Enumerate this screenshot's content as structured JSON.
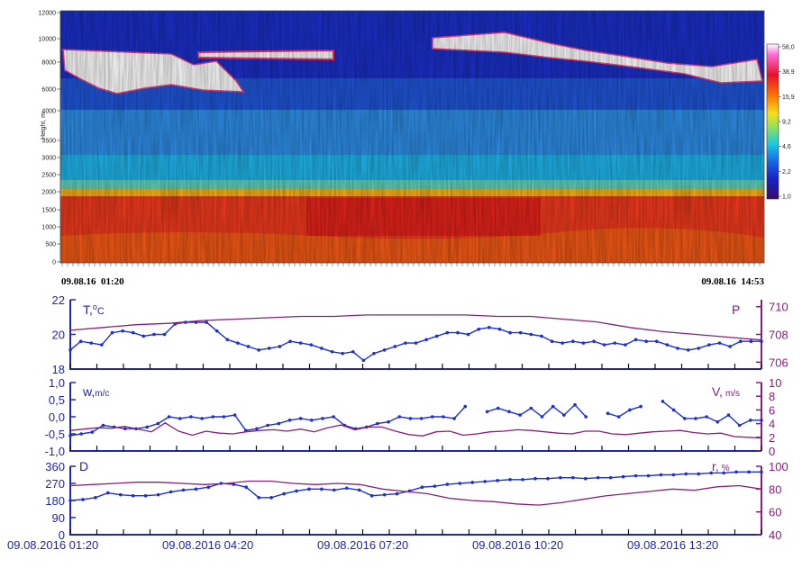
{
  "colors": {
    "blue": "#1f26b3",
    "purple": "#8c1c7a",
    "series_blue": "#1c2fd6",
    "series_purple": "#8a1f7a"
  },
  "chart_data": [
    {
      "type": "heatmap",
      "ylabel": "Height, m",
      "y_ticks": [
        "0",
        "500",
        "1000",
        "1500",
        "2000",
        "2500",
        "3000",
        "3500",
        "4000",
        "6000",
        "8000",
        "10000",
        "12000"
      ],
      "start_label": "09.08.16  01:20",
      "end_label": "09.08.16  14:53",
      "colorbar_ticks": [
        "58,0",
        "38,9",
        "15,9",
        "9,2",
        "4,6",
        "2,2",
        "1,0"
      ],
      "colorbar_colors": [
        "#ffffff",
        "#ff6ad8",
        "#e8102a",
        "#ff7a00",
        "#f4e11a",
        "#7fe06a",
        "#16c8e8",
        "#1a6de8",
        "#1622c8",
        "#3a0a6a"
      ]
    },
    {
      "type": "line",
      "left_label": "T,°C",
      "left_label_base": "T,",
      "left_label_sup": "o",
      "left_label_unit": "C",
      "right_label": "P",
      "left_ticks": [
        "18",
        "20",
        "22"
      ],
      "right_ticks": [
        "706",
        "708",
        "710"
      ],
      "left_ylim": [
        18,
        22
      ],
      "right_ylim": [
        705.5,
        710.5
      ],
      "series": [
        {
          "axis": "left",
          "values": [
            19.1,
            19.6,
            19.5,
            19.4,
            20.1,
            20.2,
            20.1,
            19.9,
            20.0,
            20.0,
            20.6,
            20.7,
            20.7,
            20.7,
            20.2,
            19.7,
            19.5,
            19.3,
            19.1,
            19.2,
            19.3,
            19.6,
            19.5,
            19.4,
            19.2,
            19.0,
            18.9,
            19.0,
            18.5,
            18.9,
            19.1,
            19.3,
            19.5,
            19.5,
            19.7,
            19.9,
            20.1,
            20.1,
            20.0,
            20.3,
            20.4,
            20.3,
            20.1,
            20.1,
            20.0,
            19.9,
            19.6,
            19.5,
            19.6,
            19.5,
            19.6,
            19.4,
            19.5,
            19.4,
            19.7,
            19.6,
            19.6,
            19.4,
            19.2,
            19.1,
            19.2,
            19.4,
            19.5,
            19.3,
            19.6,
            19.6,
            19.6
          ]
        },
        {
          "axis": "right",
          "values": [
            708.3,
            708.5,
            708.7,
            708.8,
            709.0,
            709.1,
            709.2,
            709.3,
            709.3,
            709.4,
            709.4,
            709.4,
            709.4,
            709.3,
            709.3,
            709.1,
            708.9,
            708.5,
            708.2,
            708.0,
            707.8,
            707.6
          ]
        }
      ]
    },
    {
      "type": "line",
      "left_label": "w,m/c",
      "left_label_base": "w,",
      "left_label_unit": "m/c",
      "right_label": "V, m/s",
      "right_label_base": "V,",
      "right_label_unit": "m/s",
      "left_ticks": [
        "-1,0",
        "-0,5",
        "0,0",
        "0,5",
        "1,0"
      ],
      "right_ticks": [
        "0",
        "2",
        "4",
        "6",
        "8",
        "10"
      ],
      "left_ylim": [
        -1.0,
        1.0
      ],
      "right_ylim": [
        0,
        10
      ],
      "series": [
        {
          "axis": "left",
          "values": [
            -0.55,
            -0.5,
            -0.45,
            -0.25,
            -0.3,
            -0.35,
            -0.35,
            -0.3,
            -0.2,
            0.0,
            -0.05,
            0.0,
            -0.05,
            0.0,
            0.0,
            0.05,
            -0.4,
            -0.35,
            -0.25,
            -0.2,
            -0.1,
            -0.05,
            -0.1,
            -0.05,
            0.0,
            -0.25,
            -0.35,
            -0.3,
            -0.2,
            -0.15,
            0.0,
            -0.05,
            -0.05,
            0.0,
            0.0,
            -0.05,
            0.3,
            null,
            0.15,
            0.25,
            0.15,
            0.05,
            0.25,
            0.0,
            0.3,
            0.05,
            0.35,
            0.0,
            null,
            0.1,
            0.0,
            0.2,
            0.3,
            null,
            0.45,
            0.2,
            -0.05,
            -0.05,
            0.0,
            -0.15,
            0.05,
            -0.25,
            -0.1,
            -0.1
          ]
        },
        {
          "axis": "right",
          "values": [
            3.0,
            3.2,
            3.4,
            3.3,
            3.6,
            3.2,
            2.8,
            4.1,
            2.9,
            2.3,
            2.9,
            2.6,
            2.5,
            2.8,
            3.0,
            3.1,
            2.9,
            3.2,
            2.8,
            3.4,
            3.8,
            3.1,
            3.5,
            3.5,
            2.9,
            2.4,
            2.2,
            2.8,
            2.9,
            2.3,
            2.5,
            2.8,
            2.9,
            3.1,
            3.0,
            2.8,
            2.6,
            2.5,
            2.9,
            2.9,
            2.5,
            2.4,
            2.6,
            2.8,
            2.9,
            3.0,
            2.7,
            2.5,
            2.6,
            2.1,
            2.0,
            1.9
          ]
        }
      ]
    },
    {
      "type": "line",
      "left_label": "D",
      "right_label": "r, %",
      "right_label_base": "r,",
      "right_label_unit": "%",
      "left_ticks": [
        "0",
        "90",
        "180",
        "270",
        "360"
      ],
      "right_ticks": [
        "40",
        "60",
        "80",
        "100"
      ],
      "left_ylim": [
        0,
        360
      ],
      "right_ylim": [
        40,
        100
      ],
      "x_tick_labels": [
        "09.08.2016 01:20",
        "09.08.2016 04:20",
        "09.08.2016 07:20",
        "09.08.2016 10:20",
        "09.08.2016 13:20"
      ],
      "series": [
        {
          "axis": "left",
          "values": [
            180,
            185,
            195,
            220,
            210,
            205,
            205,
            210,
            225,
            235,
            240,
            250,
            270,
            265,
            250,
            195,
            195,
            215,
            230,
            240,
            240,
            235,
            245,
            235,
            205,
            210,
            215,
            230,
            250,
            255,
            265,
            270,
            275,
            280,
            285,
            290,
            290,
            295,
            295,
            300,
            300,
            295,
            300,
            300,
            305,
            310,
            310,
            315,
            315,
            320,
            320,
            325,
            325,
            330,
            330,
            330
          ]
        },
        {
          "axis": "right",
          "values": [
            83,
            84,
            85,
            86,
            86,
            85,
            84,
            85,
            87,
            87,
            85,
            84,
            85,
            84,
            80,
            78,
            76,
            72,
            70,
            69,
            67,
            66,
            68,
            71,
            74,
            76,
            78,
            80,
            79,
            82,
            83,
            80
          ]
        }
      ]
    }
  ]
}
